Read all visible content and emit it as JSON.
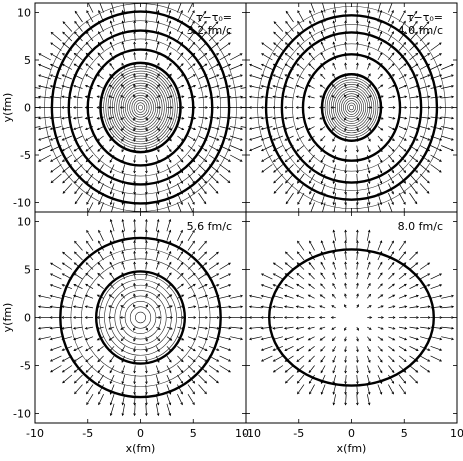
{
  "chart_data": [
    {
      "type": "contour",
      "panel": "top-left",
      "annotation_lines": [
        "τ−τ₀=",
        "3.2 fm/c"
      ],
      "thick_contours": [
        {
          "rx": 8.4,
          "ry": 10.1
        },
        {
          "rx": 6.8,
          "ry": 8.1
        },
        {
          "rx": 5.0,
          "ry": 6.1
        },
        {
          "rx": 3.8,
          "ry": 4.7
        }
      ],
      "thin_contours": {
        "count": 18,
        "max_rx": 3.7,
        "max_ry": 4.6,
        "outer_extra": [
          6.0,
          7.6,
          9.1
        ]
      },
      "flow_arrows": true,
      "ylabel": "y(fm)",
      "xlabel": "",
      "xlim": [
        -10,
        10
      ],
      "ylim": [
        -11,
        11
      ],
      "xticks": [],
      "yticks": [
        -10,
        -5,
        0,
        5,
        10
      ]
    },
    {
      "type": "contour",
      "panel": "top-right",
      "annotation_lines": [
        "τ−τ₀=",
        "4.0 fm/c"
      ],
      "thick_contours": [
        {
          "rx": 8.1,
          "ry": 9.7
        },
        {
          "rx": 6.6,
          "ry": 7.9
        },
        {
          "rx": 4.6,
          "ry": 5.6
        },
        {
          "rx": 2.8,
          "ry": 3.5
        }
      ],
      "thin_contours": {
        "count": 14,
        "max_rx": 2.7,
        "max_ry": 3.4,
        "outer_extra": [
          5.6,
          7.3,
          8.9
        ]
      },
      "flow_arrows": true,
      "ylabel": "",
      "xlabel": "",
      "xlim": [
        -10,
        10
      ],
      "ylim": [
        -11,
        11
      ],
      "xticks": [],
      "yticks": []
    },
    {
      "type": "contour",
      "panel": "bottom-left",
      "annotation_lines": [
        "5.6 fm/c"
      ],
      "thick_contours": [
        {
          "rx": 7.6,
          "ry": 8.3
        },
        {
          "rx": 4.2,
          "ry": 4.8
        }
      ],
      "thin_contours": {
        "count": 8,
        "max_rx": 3.9,
        "max_ry": 4.5,
        "outer_extra": [
          5.6,
          6.6
        ]
      },
      "flow_arrows": true,
      "ylabel": "y(fm)",
      "xlabel": "x(fm)",
      "xlim": [
        -10,
        10
      ],
      "ylim": [
        -11,
        11
      ],
      "xticks": [
        -10,
        -5,
        0,
        5,
        10
      ],
      "yticks": [
        -10,
        -5,
        0,
        5,
        10
      ]
    },
    {
      "type": "contour",
      "panel": "bottom-right",
      "annotation_lines": [
        "8.0 fm/c"
      ],
      "thick_contours": [
        {
          "rx": 7.8,
          "ry": 7.1
        }
      ],
      "thin_contours": {
        "count": 0,
        "max_rx": 0,
        "max_ry": 0,
        "outer_extra": []
      },
      "flow_arrows": true,
      "ylabel": "",
      "xlabel": "x(fm)",
      "xlim": [
        -10,
        10
      ],
      "ylim": [
        -11,
        11
      ],
      "xticks": [
        -10,
        -5,
        0,
        5,
        10
      ],
      "yticks": []
    }
  ]
}
